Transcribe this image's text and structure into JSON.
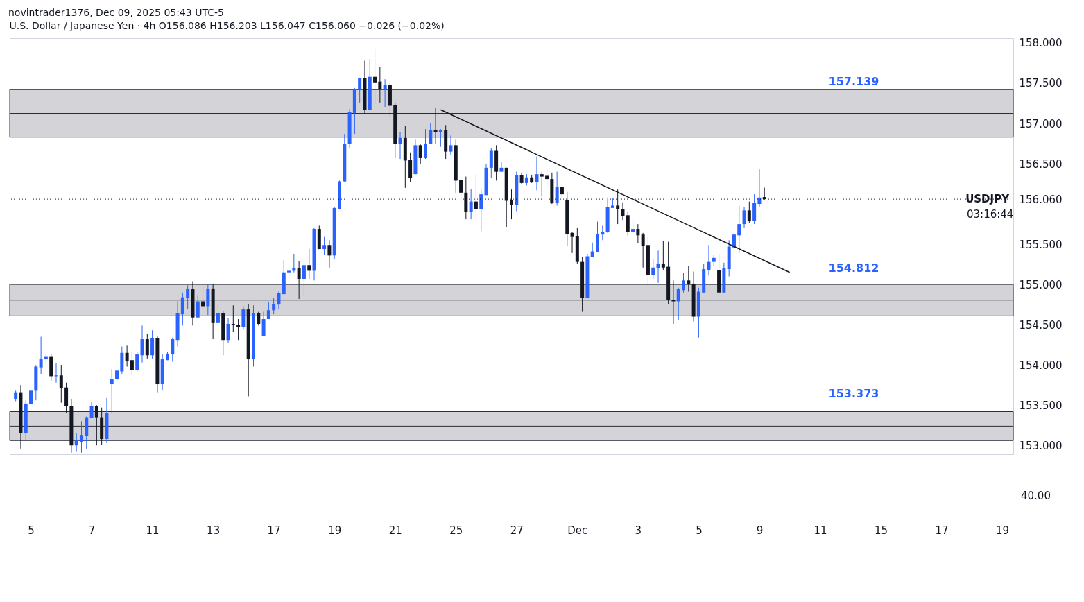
{
  "chart_data": {
    "type": "candlestick",
    "title": "U.S. Dollar / Japanese Yen · 4h  O156.086  H156.203  L156.047  C156.060  −0.026 (−0.02%)",
    "subtitle": "novintrader1376, Dec 09, 2025 05:43 UTC-5",
    "categories": [
      null,
      null,
      null,
      "5",
      null,
      null,
      null,
      null,
      null,
      null,
      null,
      null,
      null,
      null,
      null,
      "7",
      null,
      null,
      null,
      null,
      null,
      null,
      null,
      null,
      null,
      null,
      null,
      "11",
      null,
      null,
      null,
      null,
      null,
      null,
      null,
      null,
      null,
      null,
      null,
      "13",
      null,
      null,
      null,
      null,
      null,
      null,
      null,
      null,
      null,
      null,
      null,
      "17",
      null,
      null,
      null,
      null,
      null,
      null,
      null,
      null,
      null,
      null,
      null,
      "19",
      null,
      null,
      null,
      null,
      null,
      null,
      null,
      null,
      null,
      null,
      null,
      "21",
      null,
      null,
      null,
      null,
      null,
      null,
      null,
      null,
      null,
      null,
      null,
      "25",
      null,
      null,
      null,
      null,
      null,
      null,
      null,
      null,
      null,
      null,
      null,
      "27",
      null,
      null,
      null,
      null,
      null,
      null,
      null,
      null,
      null,
      null,
      null,
      "Dec",
      null,
      null,
      null,
      null,
      null,
      null,
      null,
      null,
      null,
      null,
      null,
      "3",
      null,
      null,
      null,
      null,
      null,
      null,
      null,
      null,
      null,
      null,
      null,
      "5",
      null,
      null,
      null,
      null,
      null,
      null,
      null,
      null,
      null,
      null,
      null,
      "9",
      null,
      null,
      null,
      null,
      null,
      null,
      null,
      null,
      null,
      null,
      null,
      "11",
      null,
      null,
      null,
      null,
      null,
      null,
      null,
      null,
      null,
      null,
      null,
      "15",
      null,
      null,
      null,
      null,
      null,
      null,
      null,
      null,
      null,
      null,
      null,
      "17",
      null,
      null,
      null,
      null,
      null,
      null,
      null,
      null,
      null,
      null,
      null,
      "19",
      null
    ],
    "ohlc": [
      [
        153.58,
        153.68,
        153.55,
        153.66
      ],
      [
        153.66,
        153.75,
        152.96,
        153.15
      ],
      [
        153.15,
        153.56,
        153.06,
        153.52
      ],
      [
        153.51,
        153.74,
        153.42,
        153.68
      ],
      [
        153.68,
        153.99,
        153.56,
        153.98
      ],
      [
        153.97,
        154.35,
        153.89,
        154.07
      ],
      [
        154.07,
        154.14,
        154.0,
        154.1
      ],
      [
        154.1,
        154.14,
        153.8,
        153.86
      ],
      [
        153.86,
        154.02,
        153.78,
        153.87
      ],
      [
        153.87,
        154.0,
        153.53,
        153.71
      ],
      [
        153.72,
        153.78,
        153.4,
        153.49
      ],
      [
        153.49,
        153.58,
        152.91,
        153.0
      ],
      [
        153.0,
        153.15,
        152.92,
        153.06
      ],
      [
        153.04,
        153.3,
        152.91,
        153.13
      ],
      [
        153.12,
        153.36,
        152.96,
        153.35
      ],
      [
        153.34,
        153.54,
        153.34,
        153.49
      ],
      [
        153.49,
        153.5,
        153.0,
        153.35
      ],
      [
        153.35,
        153.47,
        153.01,
        153.08
      ],
      [
        153.08,
        153.59,
        153.03,
        153.4
      ],
      [
        153.76,
        153.95,
        153.4,
        153.82
      ],
      [
        153.82,
        154.07,
        153.79,
        153.93
      ],
      [
        153.92,
        154.23,
        153.89,
        154.15
      ],
      [
        154.15,
        154.24,
        153.98,
        154.05
      ],
      [
        154.06,
        154.16,
        153.88,
        153.94
      ],
      [
        153.94,
        154.16,
        153.92,
        154.13
      ],
      [
        154.12,
        154.49,
        154.03,
        154.32
      ],
      [
        154.32,
        154.39,
        154.08,
        154.12
      ],
      [
        154.12,
        154.43,
        154.08,
        154.33
      ],
      [
        154.33,
        154.36,
        153.66,
        153.76
      ],
      [
        153.76,
        154.13,
        153.69,
        154.07
      ],
      [
        154.06,
        154.16,
        154.06,
        154.14
      ],
      [
        154.13,
        154.34,
        154.04,
        154.32
      ],
      [
        154.31,
        154.79,
        154.23,
        154.64
      ],
      [
        154.63,
        154.9,
        154.49,
        154.84
      ],
      [
        154.83,
        154.99,
        154.7,
        154.94
      ],
      [
        154.94,
        155.04,
        154.49,
        154.59
      ],
      [
        154.59,
        154.86,
        154.58,
        154.79
      ],
      [
        154.79,
        155.01,
        154.69,
        154.73
      ],
      [
        154.73,
        155.01,
        154.62,
        154.95
      ],
      [
        154.95,
        155.01,
        154.32,
        154.52
      ],
      [
        154.52,
        154.76,
        154.49,
        154.64
      ],
      [
        154.64,
        154.67,
        154.12,
        154.31
      ],
      [
        154.31,
        154.58,
        154.27,
        154.51
      ],
      [
        154.51,
        154.74,
        154.41,
        154.5
      ],
      [
        154.5,
        154.57,
        154.31,
        154.47
      ],
      [
        154.47,
        154.73,
        154.44,
        154.69
      ],
      [
        154.69,
        154.76,
        153.61,
        154.07
      ],
      [
        154.07,
        154.74,
        153.98,
        154.64
      ],
      [
        154.64,
        154.66,
        154.49,
        154.51
      ],
      [
        154.36,
        154.66,
        154.36,
        154.57
      ],
      [
        154.57,
        154.78,
        154.57,
        154.68
      ],
      [
        154.68,
        154.83,
        154.63,
        154.76
      ],
      [
        154.75,
        154.91,
        154.69,
        154.89
      ],
      [
        154.88,
        155.3,
        154.87,
        155.15
      ],
      [
        155.15,
        155.26,
        155.07,
        155.17
      ],
      [
        155.17,
        155.38,
        155.15,
        155.2
      ],
      [
        155.2,
        155.29,
        154.82,
        155.07
      ],
      [
        155.07,
        155.26,
        154.87,
        155.24
      ],
      [
        155.24,
        155.44,
        155.06,
        155.17
      ],
      [
        155.17,
        155.7,
        155.05,
        155.69
      ],
      [
        155.69,
        155.73,
        155.44,
        155.44
      ],
      [
        155.44,
        155.59,
        155.37,
        155.49
      ],
      [
        155.49,
        155.55,
        155.21,
        155.36
      ],
      [
        155.36,
        155.96,
        155.32,
        155.95
      ],
      [
        155.94,
        156.29,
        155.93,
        156.28
      ],
      [
        156.28,
        156.87,
        156.27,
        156.75
      ],
      [
        156.75,
        157.18,
        156.7,
        157.14
      ],
      [
        157.13,
        157.44,
        156.87,
        157.43
      ],
      [
        157.42,
        157.57,
        157.26,
        157.56
      ],
      [
        157.56,
        157.78,
        157.12,
        157.17
      ],
      [
        157.17,
        157.8,
        157.16,
        157.58
      ],
      [
        157.58,
        157.92,
        157.26,
        157.51
      ],
      [
        157.52,
        157.7,
        157.26,
        157.43
      ],
      [
        157.43,
        157.55,
        157.2,
        157.48
      ],
      [
        157.48,
        157.5,
        157.08,
        157.22
      ],
      [
        157.23,
        157.26,
        156.57,
        156.75
      ],
      [
        156.75,
        156.89,
        156.56,
        156.82
      ],
      [
        156.82,
        156.97,
        156.2,
        156.54
      ],
      [
        156.55,
        156.64,
        156.27,
        156.32
      ],
      [
        156.37,
        156.8,
        156.37,
        156.73
      ],
      [
        156.73,
        156.74,
        156.5,
        156.57
      ],
      [
        156.57,
        156.93,
        156.56,
        156.75
      ],
      [
        156.75,
        157.0,
        156.75,
        156.92
      ],
      [
        156.92,
        157.19,
        156.75,
        156.89
      ],
      [
        156.89,
        156.93,
        156.71,
        156.92
      ],
      [
        156.92,
        156.98,
        156.56,
        156.65
      ],
      [
        156.65,
        156.85,
        156.61,
        156.73
      ],
      [
        156.73,
        156.8,
        156.14,
        156.29
      ],
      [
        156.3,
        156.34,
        156.01,
        156.14
      ],
      [
        156.14,
        156.34,
        155.81,
        155.9
      ],
      [
        155.9,
        156.19,
        155.81,
        156.03
      ],
      [
        156.03,
        156.37,
        155.81,
        155.94
      ],
      [
        155.94,
        156.18,
        155.66,
        156.12
      ],
      [
        156.11,
        156.5,
        156.11,
        156.45
      ],
      [
        156.45,
        156.69,
        156.32,
        156.66
      ],
      [
        156.66,
        156.73,
        156.29,
        156.4
      ],
      [
        156.4,
        156.52,
        156.4,
        156.45
      ],
      [
        156.45,
        156.45,
        155.71,
        156.04
      ],
      [
        156.05,
        156.18,
        155.81,
        155.99
      ],
      [
        155.99,
        156.4,
        155.91,
        156.36
      ],
      [
        156.36,
        156.39,
        156.25,
        156.26
      ],
      [
        156.26,
        156.37,
        156.23,
        156.33
      ],
      [
        156.33,
        156.36,
        156.26,
        156.27
      ],
      [
        156.27,
        156.59,
        156.17,
        156.37
      ],
      [
        156.37,
        156.4,
        156.09,
        156.34
      ],
      [
        156.35,
        156.44,
        156.22,
        156.31
      ],
      [
        156.31,
        156.39,
        156.0,
        156.01
      ],
      [
        156.01,
        156.4,
        155.98,
        156.21
      ],
      [
        156.21,
        156.24,
        156.07,
        156.12
      ],
      [
        156.05,
        156.15,
        155.48,
        155.63
      ],
      [
        155.64,
        155.65,
        155.39,
        155.59
      ],
      [
        155.6,
        155.7,
        155.26,
        155.28
      ],
      [
        155.28,
        155.34,
        154.66,
        154.83
      ],
      [
        154.83,
        155.38,
        154.83,
        155.35
      ],
      [
        155.34,
        155.52,
        155.34,
        155.41
      ],
      [
        155.4,
        155.78,
        155.4,
        155.63
      ],
      [
        155.62,
        155.73,
        155.55,
        155.65
      ],
      [
        155.65,
        156.08,
        155.64,
        155.96
      ],
      [
        155.95,
        156.07,
        155.95,
        155.98
      ],
      [
        155.98,
        156.18,
        155.75,
        155.94
      ],
      [
        155.94,
        156.02,
        155.8,
        155.85
      ],
      [
        155.86,
        155.9,
        155.61,
        155.65
      ],
      [
        155.65,
        155.8,
        155.63,
        155.69
      ],
      [
        155.69,
        155.75,
        155.51,
        155.61
      ],
      [
        155.62,
        155.64,
        155.21,
        155.48
      ],
      [
        155.49,
        155.6,
        155.01,
        155.12
      ],
      [
        155.12,
        155.32,
        155.07,
        155.21
      ],
      [
        155.2,
        155.42,
        155.02,
        155.26
      ],
      [
        155.26,
        155.54,
        155.18,
        155.21
      ],
      [
        155.22,
        155.53,
        154.76,
        154.81
      ],
      [
        154.81,
        155.05,
        154.51,
        154.79
      ],
      [
        154.79,
        154.96,
        154.56,
        154.94
      ],
      [
        154.93,
        155.14,
        154.9,
        155.05
      ],
      [
        155.05,
        155.23,
        154.91,
        155.01
      ],
      [
        155.01,
        155.16,
        154.54,
        154.6
      ],
      [
        154.6,
        154.96,
        154.34,
        154.91
      ],
      [
        154.9,
        155.26,
        154.89,
        155.19
      ],
      [
        155.18,
        155.49,
        155.11,
        155.28
      ],
      [
        155.28,
        155.37,
        155.23,
        155.33
      ],
      [
        155.18,
        155.38,
        154.9,
        154.9
      ],
      [
        154.9,
        155.27,
        154.89,
        155.2
      ],
      [
        155.19,
        155.55,
        155.1,
        155.47
      ],
      [
        155.46,
        155.66,
        155.41,
        155.62
      ],
      [
        155.61,
        155.98,
        155.39,
        155.75
      ],
      [
        155.75,
        155.96,
        155.7,
        155.92
      ],
      [
        155.92,
        156.03,
        155.76,
        155.79
      ],
      [
        155.79,
        156.12,
        155.75,
        156.01
      ],
      [
        156.0,
        156.43,
        155.96,
        156.08
      ],
      [
        156.086,
        156.203,
        156.047,
        156.06
      ],
      null,
      null,
      null,
      null,
      null,
      null,
      null,
      null,
      null,
      null,
      null,
      null,
      null,
      null,
      null,
      null,
      null,
      null,
      null,
      null,
      null,
      null,
      null,
      null,
      null,
      null,
      null,
      null,
      null,
      null,
      null,
      null,
      null,
      null,
      null,
      null,
      null,
      null,
      null,
      null,
      null,
      null,
      null,
      null,
      null,
      null,
      null,
      null
    ],
    "colors": [
      "#2962ff",
      "#131722",
      "#2962ff",
      "#2962ff",
      "#2962ff",
      "#2962ff",
      "#2962ff",
      "#131722",
      "#2962ff",
      "#131722",
      "#131722",
      "#131722",
      "#2962ff",
      "#2962ff",
      "#2962ff",
      "#2962ff",
      "#131722",
      "#131722",
      "#2962ff",
      "#2962ff",
      "#2962ff",
      "#2962ff",
      "#131722",
      "#131722",
      "#2962ff",
      "#2962ff",
      "#131722",
      "#2962ff",
      "#131722",
      "#2962ff",
      "#2962ff",
      "#2962ff",
      "#2962ff",
      "#2962ff",
      "#2962ff",
      "#131722",
      "#2962ff",
      "#131722",
      "#2962ff",
      "#131722",
      "#2962ff",
      "#131722",
      "#2962ff",
      "#131722",
      "#131722",
      "#2962ff",
      "#131722",
      "#2962ff",
      "#131722",
      "#2962ff",
      "#2962ff",
      "#2962ff",
      "#2962ff",
      "#2962ff",
      "#2962ff",
      "#2962ff",
      "#131722",
      "#2962ff",
      "#131722",
      "#2962ff",
      "#131722",
      "#2962ff",
      "#131722",
      "#2962ff",
      "#2962ff",
      "#2962ff",
      "#2962ff",
      "#2962ff",
      "#2962ff",
      "#131722",
      "#2962ff",
      "#131722",
      "#131722",
      "#2962ff",
      "#131722",
      "#131722",
      "#2962ff",
      "#131722",
      "#131722",
      "#2962ff",
      "#131722",
      "#2962ff",
      "#2962ff",
      "#131722",
      "#2962ff",
      "#131722",
      "#2962ff",
      "#131722",
      "#131722",
      "#131722",
      "#2962ff",
      "#131722",
      "#2962ff",
      "#2962ff",
      "#2962ff",
      "#131722",
      "#2962ff",
      "#131722",
      "#131722",
      "#2962ff",
      "#131722",
      "#2962ff",
      "#131722",
      "#2962ff",
      "#131722",
      "#131722",
      "#131722",
      "#2962ff",
      "#131722",
      "#131722",
      "#131722",
      "#131722",
      "#131722",
      "#2962ff",
      "#2962ff",
      "#2962ff",
      "#2962ff",
      "#2962ff",
      "#2962ff",
      "#131722",
      "#131722",
      "#131722",
      "#2962ff",
      "#131722",
      "#131722",
      "#131722",
      "#2962ff",
      "#2962ff",
      "#131722",
      "#131722",
      "#131722",
      "#2962ff",
      "#2962ff",
      "#131722",
      "#131722",
      "#2962ff",
      "#2962ff",
      "#2962ff",
      "#2962ff",
      "#131722",
      "#2962ff",
      "#2962ff",
      "#2962ff",
      "#2962ff",
      "#2962ff",
      "#131722",
      "#2962ff",
      "#2962ff",
      "#131722",
      null,
      null,
      null,
      null,
      null,
      null,
      null,
      null,
      null,
      null,
      null,
      null,
      null,
      null,
      null,
      null,
      null,
      null,
      null,
      null,
      null,
      null,
      null,
      null,
      null,
      null,
      null,
      null,
      null,
      null,
      null,
      null,
      null,
      null,
      null,
      null,
      null,
      null,
      null,
      null,
      null,
      null,
      null,
      null,
      null,
      null,
      null,
      null
    ],
    "series": [
      {
        "type": "line",
        "color": "#131722",
        "values": [
          null,
          null,
          null,
          null,
          null,
          null,
          null,
          null,
          null,
          null,
          null,
          null,
          null,
          null,
          null,
          null,
          null,
          null,
          null,
          null,
          null,
          null,
          null,
          null,
          null,
          null,
          null,
          null,
          null,
          null,
          null,
          null,
          null,
          null,
          null,
          null,
          null,
          null,
          null,
          null,
          null,
          null,
          null,
          null,
          null,
          null,
          null,
          null,
          null,
          null,
          null,
          null,
          null,
          null,
          null,
          null,
          null,
          null,
          null,
          null,
          null,
          null,
          null,
          null,
          null,
          null,
          null,
          null,
          null,
          null,
          null,
          null,
          null,
          null,
          null,
          null,
          null,
          null,
          null,
          null,
          null,
          null,
          null,
          null,
          157.17,
          null,
          null,
          null,
          null,
          null,
          null,
          null,
          null,
          null,
          null,
          null,
          null,
          null,
          null,
          null,
          null,
          null,
          null,
          null,
          null,
          null,
          null,
          null,
          null,
          null,
          null,
          null,
          null,
          null,
          null,
          null,
          null,
          null,
          null,
          null,
          null,
          null,
          null,
          null,
          null,
          null,
          null,
          null,
          null,
          null,
          null,
          null,
          null,
          null,
          null,
          null,
          null,
          null,
          null,
          null,
          null,
          null,
          null,
          null,
          null,
          null,
          null,
          null,
          null,
          null,
          null,
          null,
          null,
          155.15,
          null,
          null,
          null,
          null,
          null,
          null,
          null,
          null,
          null,
          null,
          null,
          null,
          null,
          null,
          null,
          null,
          null,
          null,
          null,
          null,
          null,
          null,
          null,
          null,
          null,
          null,
          null,
          null,
          null,
          null,
          null,
          null,
          null,
          null,
          null,
          null,
          null,
          null,
          null,
          null,
          null,
          null,
          null
        ]
      }
    ],
    "ylim": [
      152.89,
      158.06
    ],
    "yticks": [
      {
        "value": 153,
        "label": "153.000"
      },
      {
        "value": 153.5,
        "label": "153.500"
      },
      {
        "value": 154,
        "label": "154.000"
      },
      {
        "value": 154.5,
        "label": "154.500"
      },
      {
        "value": 155,
        "label": "155.000"
      },
      {
        "value": 155.5,
        "label": "155.500"
      },
      {
        "value": 156.06,
        "label": "156.060"
      },
      {
        "value": 156.5,
        "label": "156.500"
      },
      {
        "value": 157,
        "label": "157.000"
      },
      {
        "value": 157.5,
        "label": "157.500"
      },
      {
        "value": 158,
        "label": "158.000"
      }
    ],
    "bands": [
      {
        "axis": "y",
        "from": 156.83,
        "to": 157.42,
        "color": "#d4d4d8",
        "label": "157.139"
      },
      {
        "axis": "y",
        "from": 154.61,
        "to": 155.0,
        "color": "#d4d4d8",
        "label": "154.812"
      },
      {
        "axis": "y",
        "from": 153.06,
        "to": 153.42,
        "color": "#d4d4d8",
        "label": "153.373"
      }
    ],
    "ref_lines": [
      {
        "axis": "y",
        "value": 156.06,
        "label": "USDJPY",
        "line_style": "dotted",
        "color": "#131722"
      }
    ],
    "annotations": [
      "03:16:44",
      "40.00"
    ]
  }
}
